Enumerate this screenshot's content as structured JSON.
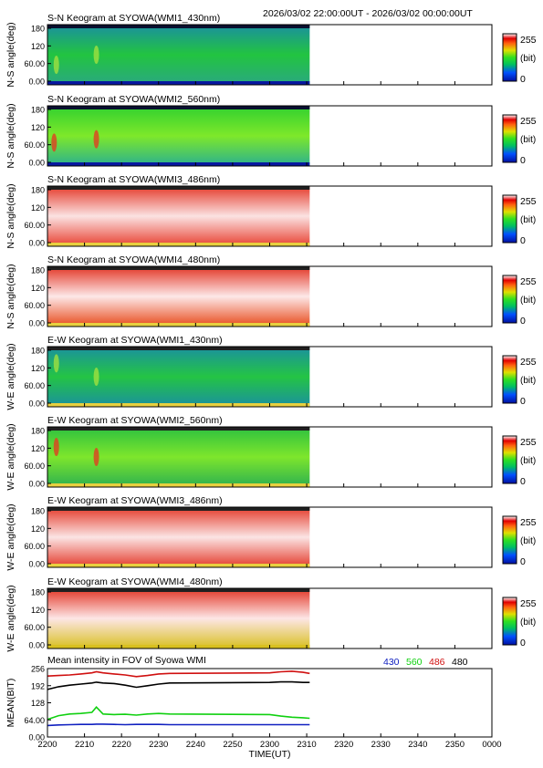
{
  "header": {
    "time_range": "2026/03/02 22:00:00UT - 2026/03/02 00:00:00UT"
  },
  "colorbar": {
    "max_label": "255",
    "unit_label": "(bit)",
    "min_label": "0"
  },
  "chart_data": [
    {
      "type": "heatmap",
      "title": "S-N Keogram at SYOWA(WMI1_430nm)",
      "ylabel": "N-S angle(deg)",
      "yticks": [
        "180",
        "120",
        "60.00",
        "0.00"
      ],
      "ylim": [
        0,
        180
      ],
      "data_until": "2318",
      "colors": [
        "#1a8fa0",
        "#22c440",
        "#2aa880"
      ],
      "features": [
        {
          "time": 2204,
          "angle": 60
        },
        {
          "time": 2222,
          "angle": 90
        }
      ]
    },
    {
      "type": "heatmap",
      "title": "S-N Keogram at SYOWA(WMI2_560nm)",
      "ylabel": "N-S angle(deg)",
      "yticks": [
        "180",
        "120",
        "60.00",
        "0.00"
      ],
      "ylim": [
        0,
        180
      ],
      "data_until": "2318",
      "colors": [
        "#30d030",
        "#7ee82a",
        "#2ab090"
      ],
      "features": [
        {
          "time": 2203,
          "angle": 70
        },
        {
          "time": 2222,
          "angle": 80
        }
      ]
    },
    {
      "type": "heatmap",
      "title": "S-N Keogram at SYOWA(WMI3_486nm)",
      "ylabel": "N-S angle(deg)",
      "yticks": [
        "180",
        "120",
        "60.00",
        "0.00"
      ],
      "ylim": [
        0,
        180
      ],
      "data_until": "2318",
      "colors": [
        "#e43a2a",
        "#fbe2e2",
        "#e84030"
      ],
      "features": []
    },
    {
      "type": "heatmap",
      "title": "S-N Keogram at SYOWA(WMI4_480nm)",
      "ylabel": "N-S angle(deg)",
      "yticks": [
        "180",
        "120",
        "60.00",
        "0.00"
      ],
      "ylim": [
        0,
        180
      ],
      "data_until": "2318",
      "colors": [
        "#e23424",
        "#fde8e8",
        "#e84a1a"
      ],
      "features": []
    },
    {
      "type": "heatmap",
      "title": "E-W Keogram at SYOWA(WMI1_430nm)",
      "ylabel": "W-E angle(deg)",
      "yticks": [
        "180",
        "120",
        "60.00",
        "0.00"
      ],
      "ylim": [
        0,
        180
      ],
      "data_until": "2318",
      "colors": [
        "#1a90a0",
        "#24c444",
        "#1a90a0"
      ],
      "features": [
        {
          "time": 2204,
          "angle": 130
        },
        {
          "time": 2222,
          "angle": 90
        }
      ]
    },
    {
      "type": "heatmap",
      "title": "E-W Keogram at SYOWA(WMI2_560nm)",
      "ylabel": "W-E angle(deg)",
      "yticks": [
        "180",
        "120",
        "60.00",
        "0.00"
      ],
      "ylim": [
        0,
        180
      ],
      "data_until": "2318",
      "colors": [
        "#2cc040",
        "#7ee62c",
        "#2cb050"
      ],
      "features": [
        {
          "time": 2204,
          "angle": 120
        },
        {
          "time": 2222,
          "angle": 90
        }
      ]
    },
    {
      "type": "heatmap",
      "title": "E-W Keogram at SYOWA(WMI3_486nm)",
      "ylabel": "W-E angle(deg)",
      "yticks": [
        "180",
        "120",
        "60.00",
        "0.00"
      ],
      "ylim": [
        0,
        180
      ],
      "data_until": "2318",
      "colors": [
        "#e43a2a",
        "#fbe4e4",
        "#e43a2a"
      ],
      "features": []
    },
    {
      "type": "heatmap",
      "title": "E-W Keogram at SYOWA(WMI4_480nm)",
      "ylabel": "W-E angle(deg)",
      "yticks": [
        "180",
        "120",
        "60.00",
        "0.00"
      ],
      "ylim": [
        0,
        180
      ],
      "data_until": "2318",
      "colors": [
        "#e23424",
        "#fde6e6",
        "#d8c020"
      ],
      "features": []
    },
    {
      "type": "line",
      "title": "Mean intensity in FOV of Syowa WMI",
      "ylabel": "MEAN(BIT)",
      "xlabel": "TIME(UT)",
      "xticks": [
        "2200",
        "2210",
        "2220",
        "2230",
        "2240",
        "2250",
        "2300",
        "2310",
        "2320",
        "2330",
        "2340",
        "2350",
        "0000"
      ],
      "yticks": [
        "256",
        "192",
        "128",
        "64.00",
        "0.00"
      ],
      "ylim": [
        0,
        256
      ],
      "x": [
        2200,
        2205,
        2210,
        2215,
        2220,
        2222,
        2225,
        2230,
        2235,
        2240,
        2245,
        2250,
        2255,
        2300,
        2305,
        2310,
        2315,
        2318
      ],
      "series": [
        {
          "name": "430",
          "color": "#1020c0",
          "values": [
            43,
            45,
            46,
            47,
            47,
            48,
            48,
            47,
            46,
            47,
            47,
            47,
            46,
            46,
            46,
            46,
            46,
            46
          ]
        },
        {
          "name": "560",
          "color": "#10d010",
          "values": [
            66,
            80,
            86,
            88,
            92,
            112,
            86,
            84,
            85,
            82,
            86,
            88,
            86,
            84,
            78,
            74,
            72,
            70
          ]
        },
        {
          "name": "486",
          "color": "#d01010",
          "values": [
            228,
            230,
            232,
            236,
            240,
            244,
            240,
            236,
            232,
            226,
            230,
            236,
            238,
            240,
            244,
            246,
            242,
            238
          ]
        },
        {
          "name": "480",
          "color": "#000000",
          "values": [
            178,
            188,
            194,
            198,
            202,
            205,
            202,
            200,
            194,
            186,
            192,
            198,
            202,
            204,
            206,
            206,
            204,
            204
          ]
        }
      ]
    }
  ]
}
